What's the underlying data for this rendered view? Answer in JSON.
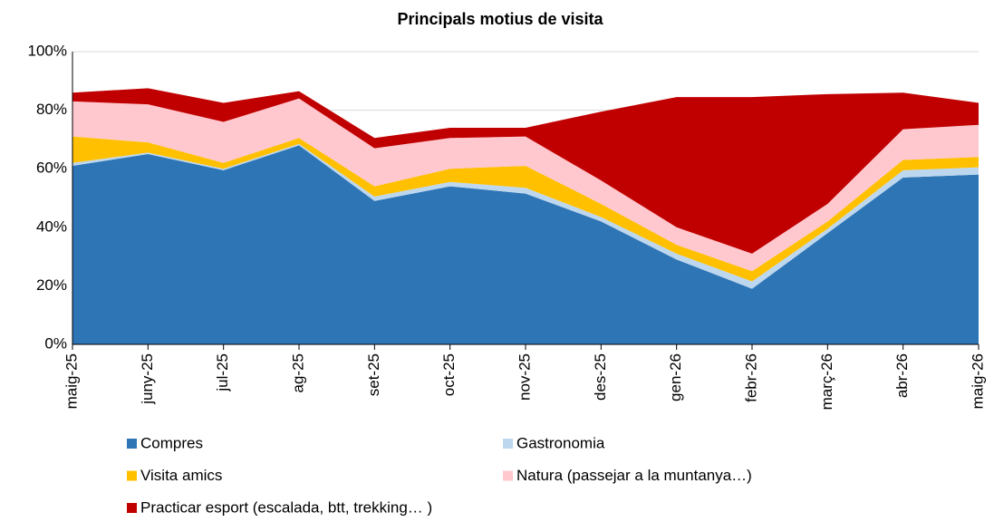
{
  "chart_data": {
    "type": "stacked_area",
    "title": "Principals motius de visita",
    "categories": [
      "maig-25",
      "juny-25",
      "jul-25",
      "ag-25",
      "set-25",
      "oct-25",
      "nov-25",
      "des-25",
      "gen-26",
      "febr-26",
      "març-26",
      "abr-26",
      "maig-26"
    ],
    "series": [
      {
        "name": "Compres",
        "color": "#2e75b6",
        "values": [
          61,
          65,
          59.5,
          68,
          49,
          54,
          51.5,
          42,
          29,
          19,
          38,
          57,
          58
        ]
      },
      {
        "name": "Gastronomia",
        "color": "#bdd7ee",
        "values": [
          1,
          0.5,
          0.5,
          0.5,
          1.5,
          1.5,
          2,
          1.5,
          2,
          2.5,
          1.5,
          2.5,
          2.5
        ]
      },
      {
        "name": "Visita amics",
        "color": "#ffc000",
        "values": [
          9,
          3.5,
          2,
          2,
          3.5,
          4.5,
          7.5,
          4.5,
          3,
          3.5,
          2.5,
          3.5,
          3.5
        ]
      },
      {
        "name": "Natura (passejar a la muntanya…)",
        "color": "#ffc7ce",
        "values": [
          12,
          13,
          14,
          13.5,
          13,
          10.5,
          10,
          8,
          6,
          6,
          6,
          10.5,
          11
        ]
      },
      {
        "name": "Practicar esport  (escalada, btt, trekking… )",
        "color": "#c00000",
        "values": [
          3,
          5.5,
          6.5,
          2.5,
          3.5,
          3.5,
          3,
          23.5,
          44.5,
          53.5,
          37.5,
          12.5,
          7.5
        ]
      }
    ],
    "ylim": [
      0,
      100
    ],
    "yticks": [
      {
        "value": 0,
        "label": "0%"
      },
      {
        "value": 20,
        "label": "20%"
      },
      {
        "value": 40,
        "label": "40%"
      },
      {
        "value": 60,
        "label": "60%"
      },
      {
        "value": 80,
        "label": "80%"
      },
      {
        "value": 100,
        "label": "100%"
      }
    ],
    "grid": true
  }
}
